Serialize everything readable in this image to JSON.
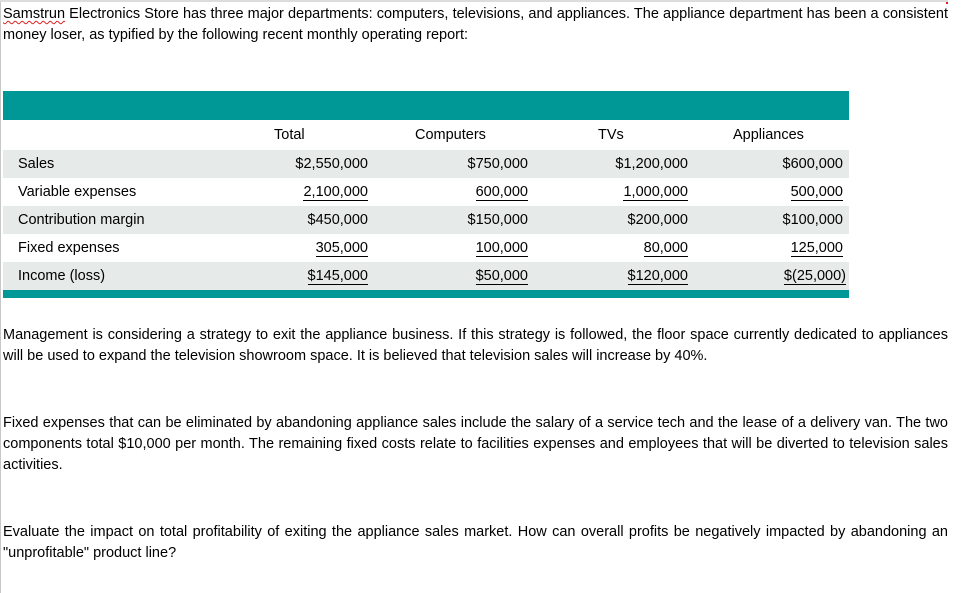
{
  "intro": {
    "brand": "Samstrun",
    "text_after_brand": " Electronics Store has three major departments: computers, televisions, and appliances.  The appliance department has been a consistent money loser, as typified by the following recent monthly operating report:"
  },
  "table": {
    "columns": [
      "Total",
      "Computers",
      "TVs",
      "Appliances"
    ],
    "rows": [
      {
        "label": "Sales",
        "values": [
          "$2,550,000",
          "$750,000",
          "$1,200,000",
          "$600,000"
        ]
      },
      {
        "label": "Variable expenses",
        "values": [
          "2,100,000",
          "600,000",
          "1,000,000",
          "500,000"
        ]
      },
      {
        "label": "Contribution margin",
        "values": [
          "$450,000",
          "$150,000",
          "$200,000",
          "$100,000"
        ]
      },
      {
        "label": "Fixed expenses",
        "values": [
          "305,000",
          "100,000",
          "80,000",
          "125,000"
        ]
      },
      {
        "label": "Income (loss)",
        "values": [
          "$145,000",
          "$50,000",
          "$120,000",
          "$(25,000)"
        ]
      }
    ]
  },
  "paragraphs": {
    "p1": "Management is considering a strategy to exit the appliance business.  If this strategy is followed, the floor space currently dedicated to appliances will be used to expand the television showroom space.  It is believed that television sales will increase by 40%.",
    "p2": "Fixed expenses that can be eliminated by abandoning appliance sales include the salary of a service tech and the lease of a delivery van.  The two components total $10,000 per month.  The remaining fixed costs relate to facilities expenses and employees that will be diverted to television sales activities.",
    "p3": "Evaluate the impact on total profitability of exiting the appliance sales market.  How can overall profits be negatively impacted by abandoning an \"unprofitable\" product line?"
  }
}
